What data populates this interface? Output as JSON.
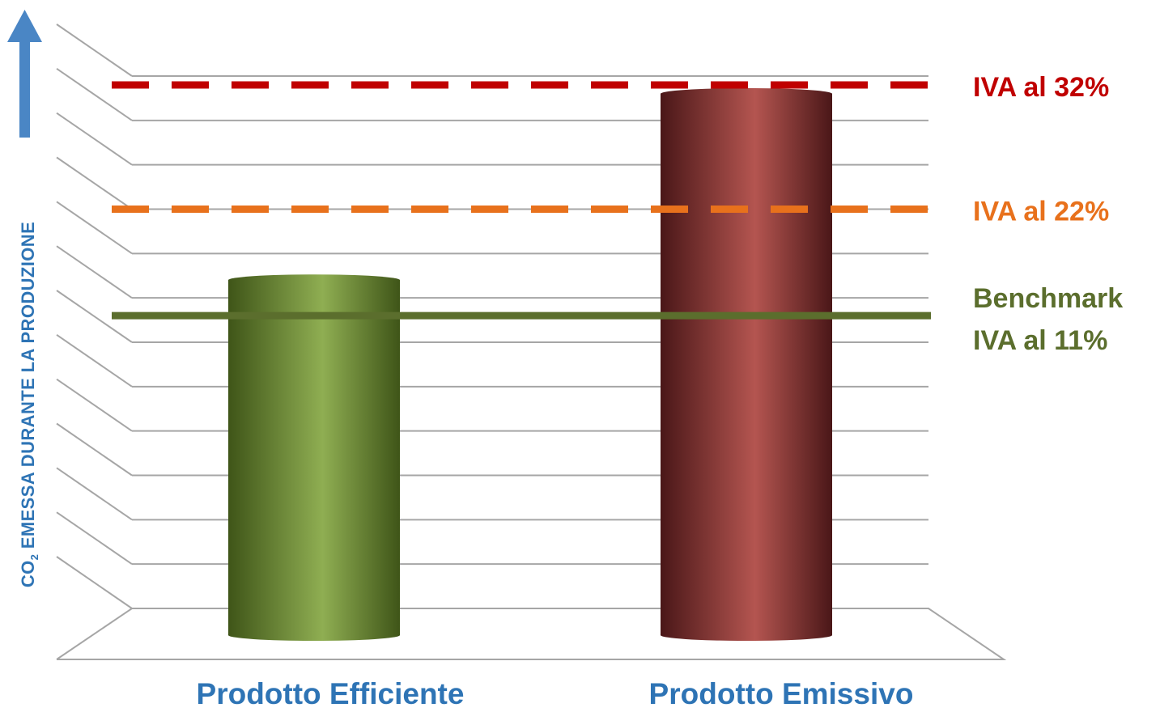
{
  "chart_data": {
    "type": "bar",
    "categories": [
      "Prodotto Efficiente",
      "Prodotto Emissivo"
    ],
    "values": [
      7.4,
      11.6
    ],
    "ylim": [
      0,
      12
    ],
    "ylabel": {
      "prefix": "CO",
      "sub": "2",
      "rest": " EMESSA DURANTE LA PRODUZIONE"
    },
    "grid": true,
    "reference_lines": [
      {
        "value": 6.6,
        "label_lines": [
          "Benchmark",
          "IVA al 11%"
        ],
        "style": "solid",
        "color": "#5b6e2d"
      },
      {
        "value": 9.0,
        "label_lines": [
          "IVA al 22%"
        ],
        "style": "dashed",
        "color": "#e8711c"
      },
      {
        "value": 11.8,
        "label_lines": [
          "IVA al 32%"
        ],
        "style": "dashed",
        "color": "#c00000"
      }
    ],
    "bar_colors": {
      "light": [
        "#8fae52",
        "#b45550"
      ],
      "dark": [
        "#3f5518",
        "#4a1718"
      ]
    }
  },
  "colors": {
    "axis_label": "#2e74b5",
    "category_label": "#2e74b5",
    "arrow": "#4a86c5",
    "grid": "#a6a6a6"
  }
}
